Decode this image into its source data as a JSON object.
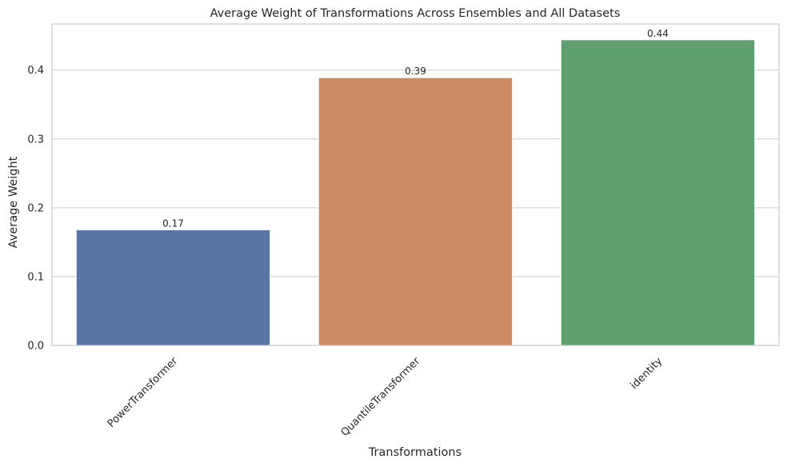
{
  "chart_data": {
    "type": "bar",
    "title": "Average Weight of Transformations Across Ensembles and All Datasets",
    "xlabel": "Transformations",
    "ylabel": "Average Weight",
    "categories": [
      "PowerTransformer",
      "QuantileTransformer",
      "identity"
    ],
    "values": [
      0.168,
      0.389,
      0.444
    ],
    "data_labels": [
      "0.17",
      "0.39",
      "0.44"
    ],
    "colors": [
      "#5875a4",
      "#cc8963",
      "#5f9e6e"
    ],
    "ylim": [
      0,
      0.467
    ],
    "yticks": [
      0.0,
      0.1,
      0.2,
      0.3,
      0.4
    ],
    "ytick_labels": [
      "0.0",
      "0.1",
      "0.2",
      "0.3",
      "0.4"
    ],
    "grid": "horizontal",
    "xtick_rotation": "45deg",
    "legend": "none"
  },
  "style": {
    "grid_color": "#cccccc",
    "spine_color": "#cccccc",
    "text_color": "#262626"
  }
}
